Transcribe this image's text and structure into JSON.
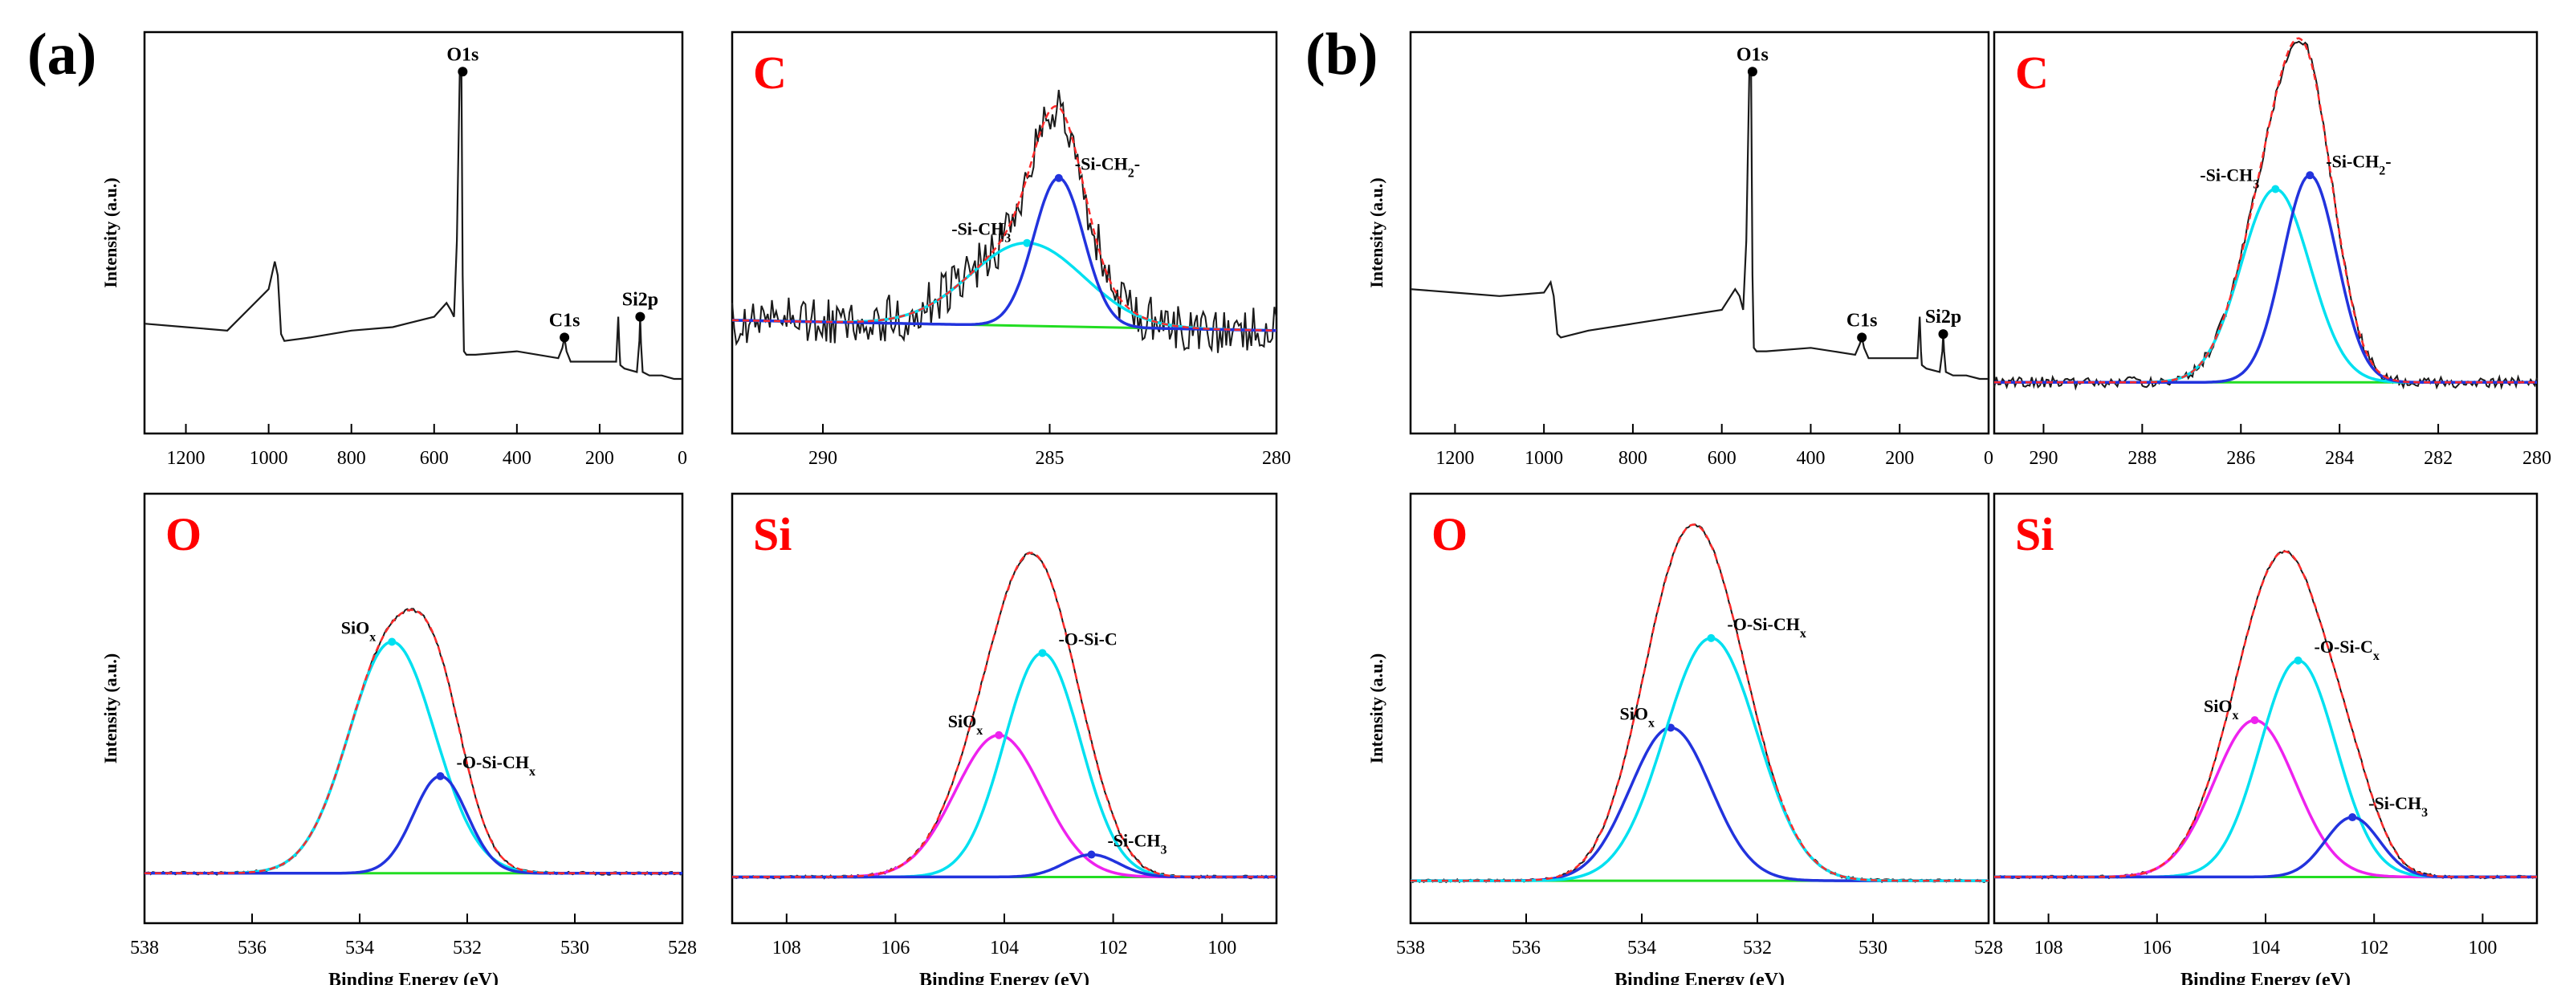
{
  "figure_labels": [
    "(a)",
    "(b)"
  ],
  "colors": {
    "raw": "#1a1a1a",
    "envelope": "#ff2a2a",
    "background": "#22dd22",
    "cyan": "#00e0f0",
    "blue": "#2233dd",
    "magenta": "#ee22ee",
    "title": "#ff0000",
    "axis": "#000000"
  },
  "chart_data": [
    {
      "id": "a-survey",
      "group": "(a)",
      "type": "line",
      "title": "",
      "xlabel": "",
      "ylabel": "Intensity (a.u.)",
      "xlim": [
        1300,
        0
      ],
      "ylim": [
        0,
        100
      ],
      "xticks": [
        1200,
        1000,
        800,
        600,
        400,
        200,
        0
      ],
      "x": [
        1300,
        1200,
        1100,
        1000,
        985,
        978,
        970,
        962,
        900,
        800,
        700,
        600,
        570,
        560,
        552,
        545,
        538,
        534,
        531,
        528,
        522,
        500,
        400,
        300,
        290,
        285,
        280,
        270,
        200,
        160,
        155,
        152,
        150,
        140,
        110,
        104,
        102,
        100,
        96,
        80,
        50,
        20,
        0
      ],
      "y": [
        26,
        25,
        24,
        36,
        44,
        40,
        23,
        21,
        22,
        24,
        25,
        28,
        32,
        30,
        28,
        50,
        99,
        98,
        40,
        18,
        17,
        17,
        18,
        16,
        19,
        22,
        18,
        15,
        15,
        15,
        28,
        18,
        14,
        13,
        12,
        21,
        28,
        20,
        12,
        11,
        11,
        10,
        10
      ],
      "peak_markers": [
        {
          "label": "O1s",
          "x": 531,
          "y": 99
        },
        {
          "label": "C1s",
          "x": 285,
          "y": 22
        },
        {
          "label": "Si2p",
          "x": 102,
          "y": 28
        }
      ]
    },
    {
      "id": "a-C",
      "group": "(a)",
      "type": "line",
      "title": "C",
      "xlim": [
        292,
        280
      ],
      "ylim": [
        0,
        100
      ],
      "xticks": [
        290,
        285,
        280
      ],
      "raw_noise": 7,
      "raw_seed": 11,
      "baseline": [
        27,
        24
      ],
      "components": [
        {
          "name": "-Si-CH3",
          "color_key": "cyan",
          "center": 285.5,
          "height": 24,
          "sigma": 1.25
        },
        {
          "name": "-Si-CH2-",
          "color_key": "blue",
          "center": 284.8,
          "height": 43,
          "sigma": 0.55
        }
      ],
      "labels": [
        {
          "text": "-Si-CH",
          "sub": "3",
          "after": "",
          "x": 285.5
        },
        {
          "text": "-Si-CH",
          "sub": "2",
          "after": "-",
          "x": 284.8
        }
      ]
    },
    {
      "id": "a-O",
      "group": "(a)",
      "type": "line",
      "title": "O",
      "xlabel": "Binding Energy (eV)",
      "ylabel": "Intensity (a.u.)",
      "xlim": [
        538,
        528
      ],
      "ylim": [
        0,
        100
      ],
      "xticks": [
        538,
        536,
        534,
        532,
        530,
        528
      ],
      "raw_noise": 0.4,
      "raw_seed": 3,
      "baseline": [
        8,
        8
      ],
      "components": [
        {
          "name": "SiOx",
          "color_key": "cyan",
          "center": 533.4,
          "height": 62,
          "sigma": 0.8
        },
        {
          "name": "-O-Si-CHx",
          "color_key": "blue",
          "center": 532.5,
          "height": 26,
          "sigma": 0.5
        }
      ],
      "labels": [
        {
          "text": "SiO",
          "sub": "x",
          "after": "",
          "x": 533.4
        },
        {
          "text": "-O-Si-CH",
          "sub": "x",
          "after": "",
          "x": 532.5
        }
      ]
    },
    {
      "id": "a-Si",
      "group": "(a)",
      "type": "line",
      "title": "Si",
      "xlabel": "Binding Energy (eV)",
      "ylabel": "",
      "xlim": [
        109,
        99
      ],
      "ylim": [
        0,
        100
      ],
      "xticks": [
        108,
        106,
        104,
        102,
        100
      ],
      "raw_noise": 0.4,
      "raw_seed": 5,
      "baseline": [
        7,
        7
      ],
      "components": [
        {
          "name": "SiOx",
          "color_key": "magenta",
          "center": 104.1,
          "height": 38,
          "sigma": 0.8
        },
        {
          "name": "-O-Si-C",
          "color_key": "cyan",
          "center": 103.3,
          "height": 60,
          "sigma": 0.7
        },
        {
          "name": "-Si-CH3",
          "color_key": "blue",
          "center": 102.4,
          "height": 6,
          "sigma": 0.5
        }
      ],
      "labels": [
        {
          "text": "SiO",
          "sub": "x",
          "after": "",
          "x": 104.1
        },
        {
          "text": "-O-Si-C",
          "sub": "",
          "after": "",
          "x": 103.3
        },
        {
          "text": "-Si-CH",
          "sub": "3",
          "after": "",
          "x": 102.4
        }
      ]
    },
    {
      "id": "b-survey",
      "group": "(b)",
      "type": "line",
      "title": "",
      "xlabel": "",
      "ylabel": "Intensity (a.u.)",
      "xlim": [
        1300,
        0
      ],
      "ylim": [
        0,
        100
      ],
      "xticks": [
        1200,
        1000,
        800,
        600,
        400,
        200,
        0
      ],
      "x": [
        1300,
        1200,
        1100,
        1000,
        985,
        978,
        970,
        962,
        900,
        800,
        700,
        600,
        570,
        560,
        552,
        545,
        538,
        534,
        531,
        528,
        522,
        500,
        400,
        300,
        290,
        285,
        280,
        270,
        200,
        160,
        155,
        152,
        150,
        140,
        110,
        104,
        102,
        100,
        96,
        80,
        50,
        20,
        0
      ],
      "y": [
        36,
        35,
        34,
        35,
        38,
        34,
        23,
        22,
        24,
        26,
        28,
        30,
        36,
        34,
        30,
        50,
        99,
        98,
        40,
        19,
        18,
        18,
        19,
        17,
        20,
        22,
        19,
        16,
        16,
        16,
        28,
        18,
        14,
        13,
        12,
        18,
        23,
        18,
        12,
        11,
        11,
        10,
        10
      ],
      "peak_markers": [
        {
          "label": "O1s",
          "x": 531,
          "y": 99
        },
        {
          "label": "C1s",
          "x": 285,
          "y": 22
        },
        {
          "label": "Si2p",
          "x": 102,
          "y": 23
        }
      ]
    },
    {
      "id": "b-C",
      "group": "(b)",
      "type": "line",
      "title": "C",
      "xlim": [
        291,
        280
      ],
      "ylim": [
        0,
        100
      ],
      "xticks": [
        290,
        288,
        286,
        284,
        282,
        280
      ],
      "raw_noise": 1.6,
      "raw_seed": 13,
      "baseline": [
        9,
        9
      ],
      "components": [
        {
          "name": "-Si-CH3",
          "color_key": "cyan",
          "center": 285.3,
          "height": 56,
          "sigma": 0.7
        },
        {
          "name": "-Si-CH2-",
          "color_key": "blue",
          "center": 284.6,
          "height": 60,
          "sigma": 0.55
        }
      ],
      "labels": [
        {
          "text": "-Si-CH",
          "sub": "3",
          "after": "",
          "x": 285.3
        },
        {
          "text": "-Si-CH",
          "sub": "2",
          "after": "-",
          "x": 284.6
        }
      ]
    },
    {
      "id": "b-O",
      "group": "(b)",
      "type": "line",
      "title": "O",
      "xlabel": "Binding Energy (eV)",
      "ylabel": "Intensity (a.u.)",
      "xlim": [
        538,
        528
      ],
      "ylim": [
        0,
        100
      ],
      "xticks": [
        538,
        536,
        534,
        532,
        530,
        528
      ],
      "raw_noise": 0.4,
      "raw_seed": 7,
      "baseline": [
        6,
        6
      ],
      "components": [
        {
          "name": "SiOx",
          "color_key": "blue",
          "center": 533.5,
          "height": 41,
          "sigma": 0.7
        },
        {
          "name": "-O-Si-CHx",
          "color_key": "cyan",
          "center": 532.8,
          "height": 65,
          "sigma": 0.8
        }
      ],
      "labels": [
        {
          "text": "SiO",
          "sub": "x",
          "after": "",
          "x": 533.5
        },
        {
          "text": "-O-Si-CH",
          "sub": "x",
          "after": "",
          "x": 532.8
        }
      ]
    },
    {
      "id": "b-Si",
      "group": "(b)",
      "type": "line",
      "title": "Si",
      "xlabel": "Binding Energy (eV)",
      "ylabel": "",
      "xlim": [
        109,
        99
      ],
      "ylim": [
        0,
        100
      ],
      "xticks": [
        108,
        106,
        104,
        102,
        100
      ],
      "raw_noise": 0.4,
      "raw_seed": 9,
      "baseline": [
        7,
        7
      ],
      "components": [
        {
          "name": "SiOx",
          "color_key": "magenta",
          "center": 104.2,
          "height": 42,
          "sigma": 0.75
        },
        {
          "name": "-O-Si-Cx",
          "color_key": "cyan",
          "center": 103.4,
          "height": 58,
          "sigma": 0.7
        },
        {
          "name": "-Si-CH3",
          "color_key": "blue",
          "center": 102.4,
          "height": 16,
          "sigma": 0.5
        }
      ],
      "labels": [
        {
          "text": "SiO",
          "sub": "x",
          "after": "",
          "x": 104.2
        },
        {
          "text": "-O-Si-C",
          "sub": "x",
          "after": "",
          "x": 103.4
        },
        {
          "text": "-Si-CH",
          "sub": "3",
          "after": "",
          "x": 102.4
        }
      ]
    }
  ]
}
